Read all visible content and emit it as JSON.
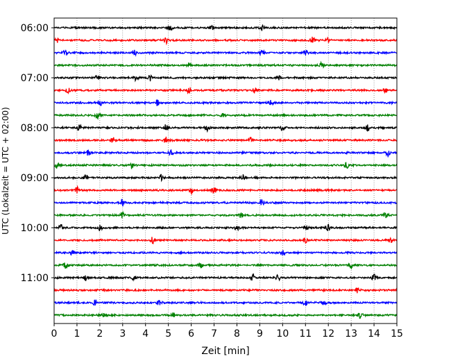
{
  "chart_data": {
    "type": "line",
    "title": "",
    "xlabel": "Zeit  [min]",
    "ylabel": "UTC (Lokalzeit = UTC + 02:00)",
    "xlim": [
      0,
      15
    ],
    "x_ticks": [
      "0",
      "1",
      "2",
      "3",
      "4",
      "5",
      "6",
      "7",
      "8",
      "9",
      "10",
      "11",
      "12",
      "13",
      "14",
      "15"
    ],
    "y_tick_labels": [
      "06:00",
      "07:00",
      "08:00",
      "09:00",
      "10:00",
      "11:00"
    ],
    "grid": "vertical dotted",
    "legend": "none",
    "trace_interval_min": 15,
    "series_colors": [
      "#000000",
      "#ff0000",
      "#0000ff",
      "#008000"
    ],
    "series": [
      {
        "label": "06:00",
        "color": "#000000",
        "bursts": [
          5.1,
          6.9,
          9.1,
          15.0
        ]
      },
      {
        "label": "06:15",
        "color": "#ff0000",
        "bursts": [
          0.1,
          4.9,
          11.3,
          12.0
        ]
      },
      {
        "label": "06:30",
        "color": "#0000ff",
        "bursts": [
          0.5,
          3.5,
          9.1,
          11.0
        ]
      },
      {
        "label": "06:45",
        "color": "#008000",
        "bursts": [
          5.9,
          11.7
        ]
      },
      {
        "label": "07:00",
        "color": "#000000",
        "bursts": [
          1.9,
          3.6,
          4.2,
          9.8
        ]
      },
      {
        "label": "07:15",
        "color": "#ff0000",
        "bursts": [
          0.6,
          5.9,
          8.8,
          14.5
        ]
      },
      {
        "label": "07:30",
        "color": "#0000ff",
        "bursts": [
          2.0,
          4.5,
          9.5
        ]
      },
      {
        "label": "07:45",
        "color": "#008000",
        "bursts": [
          1.9,
          7.4
        ]
      },
      {
        "label": "08:00",
        "color": "#000000",
        "bursts": [
          1.1,
          4.9,
          6.7,
          10.0,
          13.7
        ]
      },
      {
        "label": "08:15",
        "color": "#ff0000",
        "bursts": [
          2.6,
          4.9,
          8.6
        ]
      },
      {
        "label": "08:30",
        "color": "#0000ff",
        "bursts": [
          1.5,
          5.1,
          14.6
        ]
      },
      {
        "label": "08:45",
        "color": "#008000",
        "bursts": [
          0.1,
          3.4,
          12.8
        ]
      },
      {
        "label": "09:00",
        "color": "#000000",
        "bursts": [
          1.4,
          4.7,
          8.3
        ]
      },
      {
        "label": "09:15",
        "color": "#ff0000",
        "bursts": [
          1.0,
          6.0,
          7.0
        ]
      },
      {
        "label": "09:30",
        "color": "#0000ff",
        "bursts": [
          3.0,
          9.1
        ]
      },
      {
        "label": "09:45",
        "color": "#008000",
        "bursts": [
          3.0,
          8.2,
          14.5
        ]
      },
      {
        "label": "10:00",
        "color": "#000000",
        "bursts": [
          0.3,
          2.0,
          8.0,
          11.0,
          12.0
        ]
      },
      {
        "label": "10:15",
        "color": "#ff0000",
        "bursts": [
          4.3,
          11.0,
          14.7
        ]
      },
      {
        "label": "10:30",
        "color": "#0000ff",
        "bursts": [
          0.8,
          10.0
        ]
      },
      {
        "label": "10:45",
        "color": "#008000",
        "bursts": [
          0.5,
          6.4,
          13.0
        ]
      },
      {
        "label": "11:00",
        "color": "#000000",
        "bursts": [
          1.4,
          3.5,
          8.7,
          9.8,
          14.0
        ]
      },
      {
        "label": "11:15",
        "color": "#ff0000",
        "bursts": [
          13.3
        ]
      },
      {
        "label": "11:30",
        "color": "#0000ff",
        "bursts": [
          1.8,
          4.6,
          11.0,
          11.8
        ]
      },
      {
        "label": "11:45",
        "color": "#008000",
        "bursts": [
          2.2,
          5.2,
          13.4
        ]
      }
    ]
  }
}
